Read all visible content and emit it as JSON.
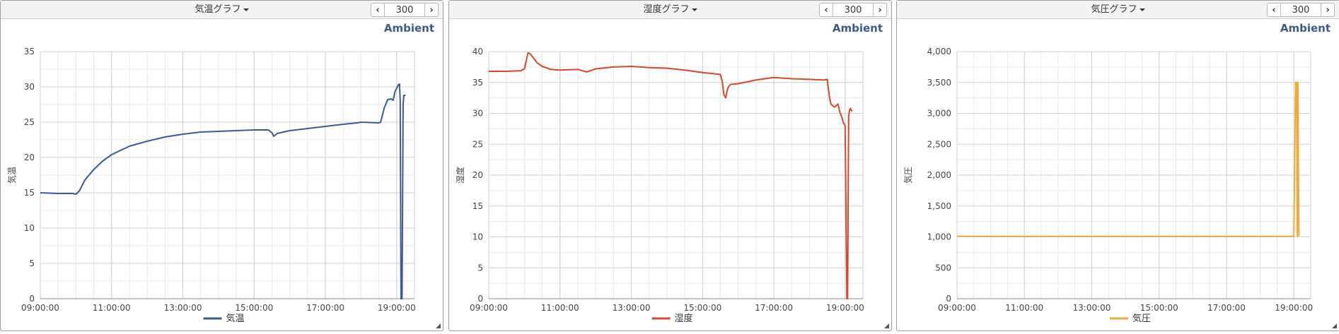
{
  "panels": [
    {
      "title": "気温グラフ",
      "page_value": "300",
      "brand": "Ambient",
      "color": "#3a5a98",
      "chart_data": {
        "type": "line",
        "x_tick_labels": [
          "09:00:00",
          "11:00:00",
          "13:00:00",
          "15:00:00",
          "17:00:00",
          "19:00:00"
        ],
        "x_tick_hours": [
          9,
          11,
          13,
          15,
          17,
          19
        ],
        "xlim_hours": [
          9,
          19.5
        ],
        "ylim": [
          0,
          35
        ],
        "y_ticks": [
          0,
          5,
          10,
          15,
          20,
          25,
          30,
          35
        ],
        "y_tick_labels": [
          "0",
          "5",
          "10",
          "15",
          "20",
          "25",
          "30",
          "35"
        ],
        "ylabel": "気温",
        "legend": "top-bottom-center",
        "grid": true,
        "series": [
          {
            "name": "気温",
            "x_hours": [
              9.0,
              9.5,
              9.9,
              10.0,
              10.1,
              10.25,
              10.5,
              10.75,
              11.0,
              11.25,
              11.5,
              12.0,
              12.5,
              13.0,
              13.5,
              14.0,
              14.5,
              15.0,
              15.4,
              15.5,
              15.55,
              15.65,
              16.0,
              16.5,
              17.0,
              17.5,
              17.9,
              18.0,
              18.5,
              18.55,
              18.65,
              18.75,
              18.85,
              18.9,
              18.95,
              19.0,
              19.05,
              19.08,
              19.1,
              19.12,
              19.15,
              19.18,
              19.2,
              19.25
            ],
            "y": [
              15.0,
              14.9,
              14.9,
              14.8,
              15.3,
              16.8,
              18.3,
              19.5,
              20.4,
              21.0,
              21.6,
              22.3,
              22.9,
              23.3,
              23.6,
              23.7,
              23.8,
              23.9,
              23.9,
              23.5,
              23.0,
              23.4,
              23.8,
              24.1,
              24.4,
              24.7,
              24.9,
              25.0,
              24.9,
              25.0,
              27.0,
              28.2,
              28.3,
              28.1,
              29.3,
              29.8,
              30.3,
              30.4,
              28.0,
              0.0,
              0.0,
              27.5,
              28.8,
              28.8
            ]
          }
        ]
      }
    },
    {
      "title": "湿度グラフ",
      "page_value": "300",
      "brand": "Ambient",
      "color": "#d8472b",
      "chart_data": {
        "type": "line",
        "x_tick_labels": [
          "09:00:00",
          "11:00:00",
          "13:00:00",
          "15:00:00",
          "17:00:00",
          "19:00:00"
        ],
        "x_tick_hours": [
          9,
          11,
          13,
          15,
          17,
          19
        ],
        "xlim_hours": [
          9,
          19.5
        ],
        "ylim": [
          0,
          40
        ],
        "y_ticks": [
          0,
          5,
          10,
          15,
          20,
          25,
          30,
          35,
          40
        ],
        "y_tick_labels": [
          "0",
          "5",
          "10",
          "15",
          "20",
          "25",
          "30",
          "35",
          "40"
        ],
        "ylabel": "湿度",
        "legend": "bottom-center",
        "grid": true,
        "series": [
          {
            "name": "湿度",
            "x_hours": [
              9.0,
              9.5,
              9.9,
              10.0,
              10.1,
              10.15,
              10.25,
              10.35,
              10.5,
              10.75,
              11.0,
              11.5,
              11.75,
              12.0,
              12.5,
              13.0,
              13.5,
              14.0,
              14.5,
              15.0,
              15.5,
              15.55,
              15.6,
              15.65,
              15.7,
              15.75,
              15.8,
              16.0,
              16.5,
              17.0,
              17.5,
              18.0,
              18.4,
              18.5,
              18.55,
              18.6,
              18.7,
              18.8,
              18.85,
              18.9,
              18.95,
              19.0,
              19.05,
              19.07,
              19.1,
              19.12,
              19.15,
              19.18,
              19.2
            ],
            "y": [
              36.8,
              36.8,
              36.9,
              37.2,
              39.8,
              39.7,
              39.0,
              38.2,
              37.6,
              37.1,
              37.0,
              37.1,
              36.7,
              37.2,
              37.5,
              37.6,
              37.4,
              37.3,
              37.0,
              36.6,
              36.3,
              35.2,
              33.0,
              32.5,
              34.0,
              34.5,
              34.7,
              34.8,
              35.4,
              35.8,
              35.6,
              35.5,
              35.4,
              35.5,
              33.0,
              31.5,
              31.0,
              31.5,
              30.2,
              29.5,
              28.5,
              28.0,
              0.0,
              0.0,
              29.5,
              30.5,
              30.8,
              30.4,
              30.5
            ]
          }
        ]
      }
    },
    {
      "title": "気圧グラフ",
      "page_value": "300",
      "brand": "Ambient",
      "color": "#f0aa3a",
      "chart_data": {
        "type": "line",
        "x_tick_labels": [
          "09:00:00",
          "11:00:00",
          "13:00:00",
          "15:00:00",
          "17:00:00",
          "19:00:00"
        ],
        "x_tick_hours": [
          9,
          11,
          13,
          15,
          17,
          19
        ],
        "xlim_hours": [
          9,
          19.5
        ],
        "ylim": [
          0,
          4000
        ],
        "y_ticks": [
          0,
          500,
          1000,
          1500,
          2000,
          2500,
          3000,
          3500,
          4000
        ],
        "y_tick_labels": [
          "0",
          "500",
          "1,000",
          "1,500",
          "2,000",
          "2,500",
          "3,000",
          "3,500",
          "4,000"
        ],
        "ylabel": "気圧",
        "legend": "bottom-center",
        "grid": true,
        "series": [
          {
            "name": "気圧",
            "x_hours": [
              9.0,
              10.0,
              11.0,
              13.0,
              15.0,
              17.0,
              18.9,
              19.0,
              19.05,
              19.08,
              19.1,
              19.12,
              19.15
            ],
            "y": [
              1010,
              1009,
              1008,
              1008,
              1008,
              1008,
              1008,
              1010,
              3500,
              3500,
              1010,
              3500,
              1010
            ]
          }
        ]
      }
    }
  ]
}
